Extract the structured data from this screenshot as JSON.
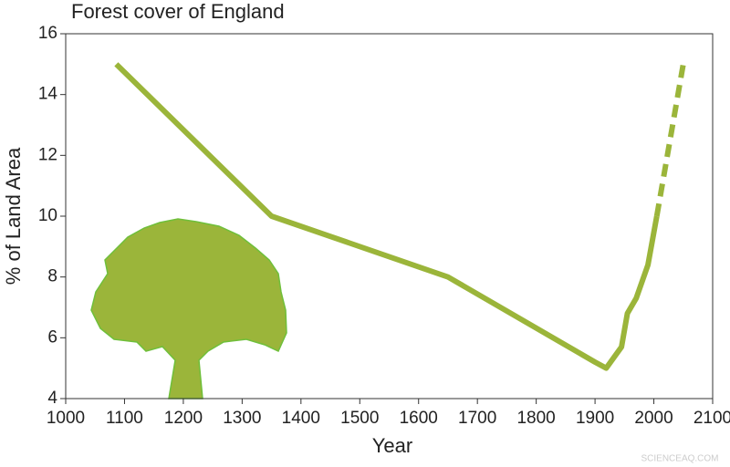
{
  "chart_data": {
    "type": "line",
    "title": "Forest cover of England",
    "xlabel": "Year",
    "ylabel": "% of Land Area",
    "x": [
      1086,
      1350,
      1650,
      1900,
      1919,
      1945,
      1955,
      1970,
      1990,
      2005,
      2050
    ],
    "series": [
      {
        "color": "#9bb53a",
        "values": [
          15,
          10,
          8,
          5.2,
          5.0,
          5.7,
          6.8,
          7.3,
          8.4,
          10,
          null
        ]
      },
      {
        "color": "#9bb53a",
        "dashed": true,
        "values": [
          null,
          null,
          null,
          null,
          null,
          null,
          null,
          null,
          null,
          10,
          15
        ]
      }
    ],
    "xlim": [
      1000,
      2100
    ],
    "xticks": [
      1000,
      1100,
      1200,
      1300,
      1400,
      1500,
      1600,
      1700,
      1800,
      1900,
      2000,
      2100
    ],
    "ylim": [
      4,
      16
    ],
    "yticks": [
      4,
      6,
      8,
      10,
      12,
      14,
      16
    ],
    "watermark": "SCIENCEAQ.COM"
  }
}
